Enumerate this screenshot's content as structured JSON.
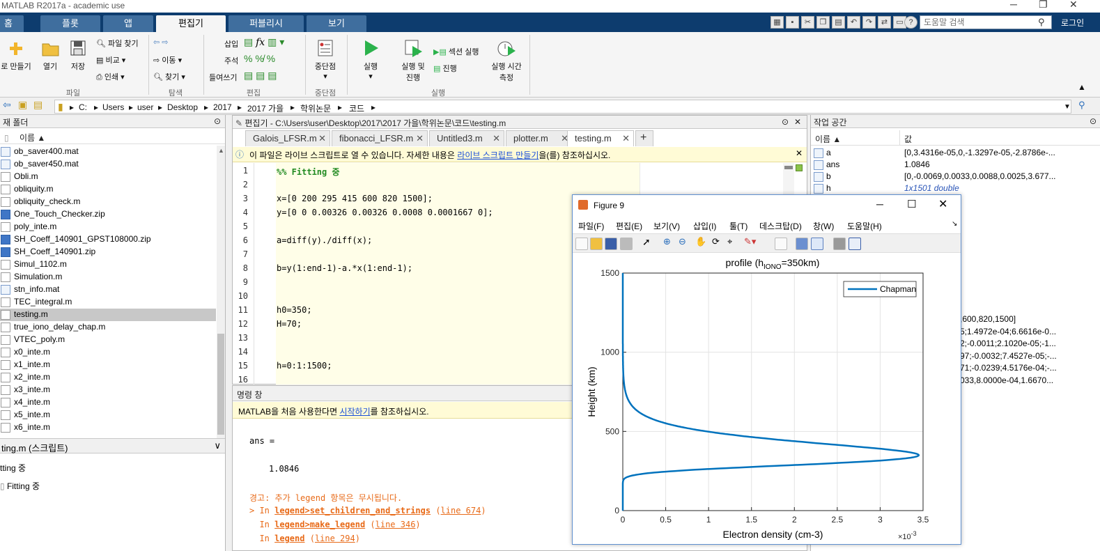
{
  "window": {
    "title": "MATLAB R2017a - academic use",
    "min": "─",
    "max": "❐",
    "close": "✕"
  },
  "tabs": [
    "홈",
    "플롯",
    "앱",
    "편집기",
    "퍼블리시",
    "보기"
  ],
  "help": {
    "placeholder": "도움말 검색",
    "login": "로그인"
  },
  "ribbon": {
    "new_script": "로 만들기",
    "open": "열기",
    "save": "저장",
    "find_files": "파일 찾기",
    "compare": "비교",
    "print": "인쇄",
    "goto": "이동",
    "find": "찾기",
    "insert": "삽입",
    "comment": "주석",
    "indent": "들여쓰기",
    "breakpoints": "중단점",
    "run": "실행",
    "run_advance": [
      "실행 및",
      "진행"
    ],
    "run_section": "섹션 실행",
    "advance": "진행",
    "run_time": [
      "실행 시간",
      "측정"
    ],
    "groups": {
      "file": "파일",
      "navigate": "탐색",
      "edit": "편집",
      "breakpoints": "중단점",
      "run": "실행"
    }
  },
  "address": [
    "C:",
    "Users",
    "user",
    "Desktop",
    "2017",
    "2017 가을",
    "학위논문",
    "코드"
  ],
  "filebrowser": {
    "header": "재 폴더",
    "col_name": "이름 ▲",
    "files": [
      {
        "name": "ob_saver400.mat",
        "type": "mat"
      },
      {
        "name": "ob_saver450.mat",
        "type": "mat"
      },
      {
        "name": "Obli.m",
        "type": "m"
      },
      {
        "name": "obliquity.m",
        "type": "m"
      },
      {
        "name": "obliquity_check.m",
        "type": "m"
      },
      {
        "name": "One_Touch_Checker.zip",
        "type": "zip"
      },
      {
        "name": "poly_inte.m",
        "type": "m"
      },
      {
        "name": "SH_Coeff_140901_GPST108000.zip",
        "type": "zip"
      },
      {
        "name": "SH_Coeff_140901.zip",
        "type": "zip"
      },
      {
        "name": "Simul_1102.m",
        "type": "m"
      },
      {
        "name": "Simulation.m",
        "type": "m"
      },
      {
        "name": "stn_info.mat",
        "type": "mat"
      },
      {
        "name": "TEC_integral.m",
        "type": "m"
      },
      {
        "name": "testing.m",
        "type": "m",
        "selected": true
      },
      {
        "name": "true_iono_delay_chap.m",
        "type": "m"
      },
      {
        "name": "VTEC_poly.m",
        "type": "m"
      },
      {
        "name": "x0_inte.m",
        "type": "m"
      },
      {
        "name": "x1_inte.m",
        "type": "m"
      },
      {
        "name": "x2_inte.m",
        "type": "m"
      },
      {
        "name": "x3_inte.m",
        "type": "m"
      },
      {
        "name": "x4_inte.m",
        "type": "m"
      },
      {
        "name": "x5_inte.m",
        "type": "m"
      },
      {
        "name": "x6_inte.m",
        "type": "m"
      }
    ],
    "details_title": "ting.m  (스크립트)",
    "section1": "tting 중",
    "section2": "Fitting 중"
  },
  "editor": {
    "title": "편집기 - C:\\Users\\user\\Desktop\\2017\\2017 가을\\학위논문\\코드\\testing.m",
    "tabs": [
      "Galois_LFSR.m",
      "fibonacci_LFSR.m",
      "Untitled3.m",
      "plotter.m",
      "testing.m"
    ],
    "info_pre": "이 파일은 라이브 스크립트로 열 수 있습니다. 자세한 내용은 ",
    "info_link": "라이브 스크립트 만들기",
    "info_post": "을(를) 참조하십시오.",
    "lines": [
      {
        "n": "1",
        "code": "%% Fitting 중",
        "comment": true
      },
      {
        "n": "2",
        "code": ""
      },
      {
        "n": "3",
        "code": "x=[0 200 295 415 600 820 1500];"
      },
      {
        "n": "4",
        "code": "y=[0 0 0.00326 0.00326 0.0008 0.0001667 0];"
      },
      {
        "n": "5",
        "code": ""
      },
      {
        "n": "6",
        "code": "a=diff(y)./diff(x);"
      },
      {
        "n": "7",
        "code": ""
      },
      {
        "n": "8",
        "code": "b=y(1:end-1)-a.*x(1:end-1);"
      },
      {
        "n": "9",
        "code": ""
      },
      {
        "n": "10",
        "code": ""
      },
      {
        "n": "11",
        "code": "h0=350;"
      },
      {
        "n": "12",
        "code": "H=70;"
      },
      {
        "n": "13",
        "code": ""
      },
      {
        "n": "14",
        "code": ""
      },
      {
        "n": "15",
        "code": "h=0:1:1500;"
      },
      {
        "n": "16",
        "code": ""
      }
    ]
  },
  "cmd": {
    "title": "명령 창",
    "info_pre": "MATLAB을 처음 사용한다면 ",
    "info_link": "시작하기",
    "info_post": "를 참조하십시오.",
    "ans_label": "ans =",
    "ans_value": "1.0846",
    "warning": "경고: 추가 legend 항목은 무시됩니다.",
    "trace": [
      {
        "prefix": "> In ",
        "fn": "legend>set_children_and_strings",
        "open": " (",
        "line": "line 674",
        "close": ")"
      },
      {
        "prefix": "  In ",
        "fn": "legend>make_legend",
        "open": " (",
        "line": "line 346",
        "close": ")"
      },
      {
        "prefix": "  In ",
        "fn": "legend",
        "open": " (",
        "line": "line 294",
        "close": ")"
      }
    ]
  },
  "workspace": {
    "title": "작업 공간",
    "col_name": "이름 ▲",
    "col_value": "값",
    "vars": [
      {
        "name": "a",
        "value": "[0,3.4316e-05,0,-1.3297e-05,-2.8786e-..."
      },
      {
        "name": "ans",
        "value": "1.0846"
      },
      {
        "name": "b",
        "value": "[0,-0.0069,0.0033,0.0088,0.0025,3.677..."
      },
      {
        "name": "h",
        "value": "1x1501 double"
      }
    ],
    "partial": [
      ",600,820,1500]",
      "5;1.4972e-04;6.6616e-0...",
      "2;-0.0011;2.1020e-05;-1...",
      "97;-0.0032;7.4527e-05;-...",
      "71;-0.0239;4.5176e-04;-...",
      "033,8.0000e-04,1.6670..."
    ]
  },
  "figure": {
    "title": "Figure 9",
    "menu": [
      "파일(F)",
      "편집(E)",
      "보기(V)",
      "삽입(I)",
      "툴(T)",
      "데스크탑(D)",
      "창(W)",
      "도움말(H)"
    ]
  },
  "chart_data": {
    "type": "line",
    "title": "profile (h",
    "title_sub": "IONO",
    "title_tail": "=350km)",
    "xlabel": "Electron density (cm-3)",
    "ylabel": "Height (km)",
    "x_exponent": "×10",
    "x_exponent_power": "-3",
    "xlim": [
      0,
      0.0035
    ],
    "ylim": [
      0,
      1500
    ],
    "xticks": [
      0,
      0.0005,
      0.001,
      0.0015,
      0.002,
      0.0025,
      0.003,
      0.0035
    ],
    "xtick_labels": [
      "0",
      "0.5",
      "1",
      "1.5",
      "2",
      "2.5",
      "3",
      "3.5"
    ],
    "yticks": [
      0,
      500,
      1000,
      1500
    ],
    "ytick_labels": [
      "0",
      "500",
      "1000",
      "1500"
    ],
    "grid": true,
    "legend_position": "top-right",
    "series": [
      {
        "name": "Chapman",
        "color": "#0072bd",
        "model": "chapman",
        "peak_height": 350,
        "scale_height": 70,
        "peak_density": 0.00345,
        "y": [
          0,
          50,
          100,
          150,
          200,
          250,
          300,
          350,
          400,
          450,
          500,
          600,
          700,
          800,
          1000,
          1200,
          1500
        ]
      }
    ]
  }
}
